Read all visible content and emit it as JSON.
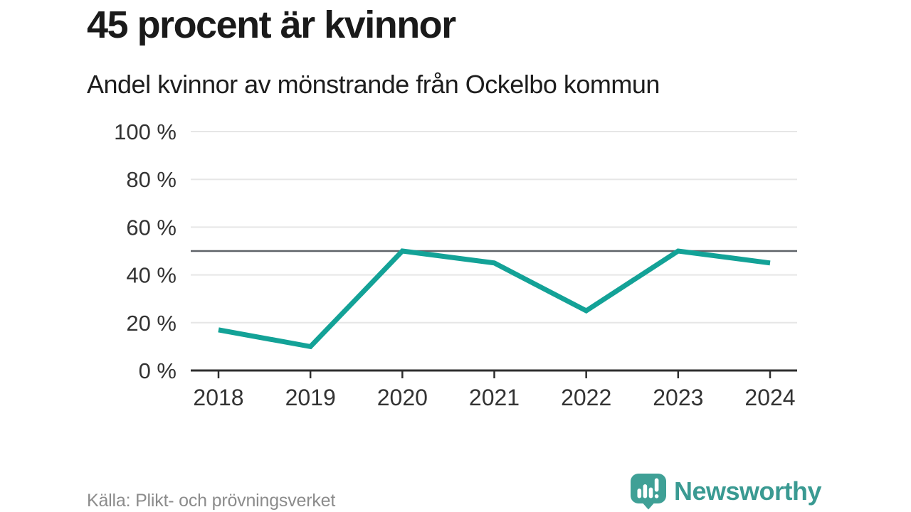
{
  "header": {
    "title": "45 procent är kvinnor",
    "subtitle": "Andel kvinnor av mönstrande från Ockelbo kommun"
  },
  "footer": {
    "source": "Källa: Plikt- och prövningsverket",
    "brand": "Newsworthy"
  },
  "colors": {
    "line": "#13a297",
    "reference_line": "#5f6368",
    "grid": "#e6e6e6",
    "axis": "#2e2e2e",
    "tick_label": "#333333",
    "logo_bubble": "#3fa096"
  },
  "chart_data": {
    "type": "line",
    "title": "45 procent är kvinnor",
    "subtitle": "Andel kvinnor av mönstrande från Ockelbo kommun",
    "categories": [
      "2018",
      "2019",
      "2020",
      "2021",
      "2022",
      "2023",
      "2024"
    ],
    "series": [
      {
        "name": "Andel kvinnor av mönstrande",
        "values": [
          17,
          10,
          50,
          45,
          25,
          50,
          45
        ]
      }
    ],
    "unit": "%",
    "ylim": [
      0,
      100
    ],
    "yticks": [
      0,
      20,
      40,
      60,
      80,
      100
    ],
    "ytick_labels": [
      "0 %",
      "20 %",
      "40 %",
      "60 %",
      "80 %",
      "100 %"
    ],
    "reference_line": 50,
    "grid": "horizontal",
    "legend_position": "none",
    "xlabel": "",
    "ylabel": ""
  }
}
